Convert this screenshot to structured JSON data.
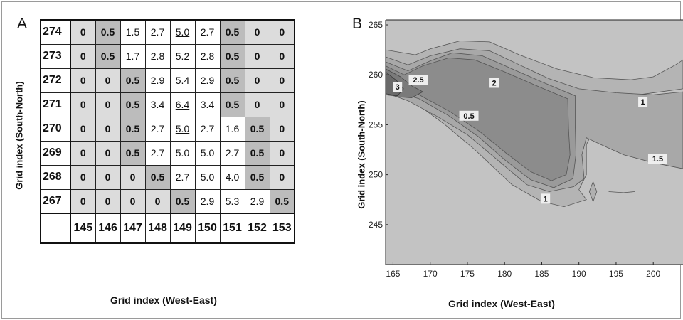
{
  "chart_data": [
    {
      "type": "table",
      "panel_label": "A",
      "ylabel": "Grid index (South-North)",
      "xlabel": "Grid index (West-East)",
      "col_headers": [
        "145",
        "146",
        "147",
        "148",
        "149",
        "150",
        "151",
        "152",
        "153"
      ],
      "rows": [
        {
          "y": "274",
          "values": [
            "0",
            "0.5",
            "1.5",
            "2.7",
            "5.0",
            "2.7",
            "0.5",
            "0",
            "0"
          ],
          "shade": [
            1,
            2,
            0,
            0,
            0,
            0,
            2,
            1,
            1
          ],
          "underline": [
            4
          ]
        },
        {
          "y": "273",
          "values": [
            "0",
            "0.5",
            "1.7",
            "2.8",
            "5.2",
            "2.8",
            "0.5",
            "0",
            "0"
          ],
          "shade": [
            1,
            2,
            0,
            0,
            0,
            0,
            2,
            1,
            1
          ],
          "underline": []
        },
        {
          "y": "272",
          "values": [
            "0",
            "0",
            "0.5",
            "2.9",
            "5.4",
            "2.9",
            "0.5",
            "0",
            "0"
          ],
          "shade": [
            1,
            1,
            2,
            0,
            0,
            0,
            2,
            1,
            1
          ],
          "underline": [
            4
          ]
        },
        {
          "y": "271",
          "values": [
            "0",
            "0",
            "0.5",
            "3.4",
            "6.4",
            "3.4",
            "0.5",
            "0",
            "0"
          ],
          "shade": [
            1,
            1,
            2,
            0,
            0,
            0,
            2,
            1,
            1
          ],
          "underline": [
            4
          ]
        },
        {
          "y": "270",
          "values": [
            "0",
            "0",
            "0.5",
            "2.7",
            "5.0",
            "2.7",
            "1.6",
            "0.5",
            "0"
          ],
          "shade": [
            1,
            1,
            2,
            0,
            0,
            0,
            0,
            2,
            1
          ],
          "underline": [
            4
          ]
        },
        {
          "y": "269",
          "values": [
            "0",
            "0",
            "0.5",
            "2.7",
            "5.0",
            "5.0",
            "2.7",
            "0.5",
            "0"
          ],
          "shade": [
            1,
            1,
            2,
            0,
            0,
            0,
            0,
            2,
            1
          ],
          "underline": []
        },
        {
          "y": "268",
          "values": [
            "0",
            "0",
            "0",
            "0.5",
            "2.7",
            "5.0",
            "4.0",
            "0.5",
            "0"
          ],
          "shade": [
            1,
            1,
            1,
            2,
            0,
            0,
            0,
            2,
            1
          ],
          "underline": []
        },
        {
          "y": "267",
          "values": [
            "0",
            "0",
            "0",
            "0",
            "0.5",
            "2.9",
            "5.3",
            "2.9",
            "0.5"
          ],
          "shade": [
            1,
            1,
            1,
            1,
            2,
            0,
            0,
            0,
            2
          ],
          "underline": [
            6
          ]
        }
      ]
    },
    {
      "type": "contour",
      "panel_label": "B",
      "ylabel": "Grid index (South-North)",
      "xlabel": "Grid index (West-East)",
      "xlim": [
        164,
        204
      ],
      "ylim": [
        241,
        265.5
      ],
      "xticks": [
        165,
        170,
        175,
        180,
        185,
        190,
        195,
        200
      ],
      "yticks": [
        245,
        250,
        255,
        260,
        265
      ],
      "contour_labels": [
        {
          "text": "3",
          "x": 165.6,
          "y": 258.8
        },
        {
          "text": "2.5",
          "x": 168.4,
          "y": 259.5
        },
        {
          "text": "2",
          "x": 178.6,
          "y": 259.2
        },
        {
          "text": "1",
          "x": 198.6,
          "y": 257.3
        },
        {
          "text": "0.5",
          "x": 175.2,
          "y": 255.9
        },
        {
          "text": "1.5",
          "x": 200.6,
          "y": 251.6
        },
        {
          "text": "1",
          "x": 185.5,
          "y": 247.6
        }
      ]
    }
  ]
}
